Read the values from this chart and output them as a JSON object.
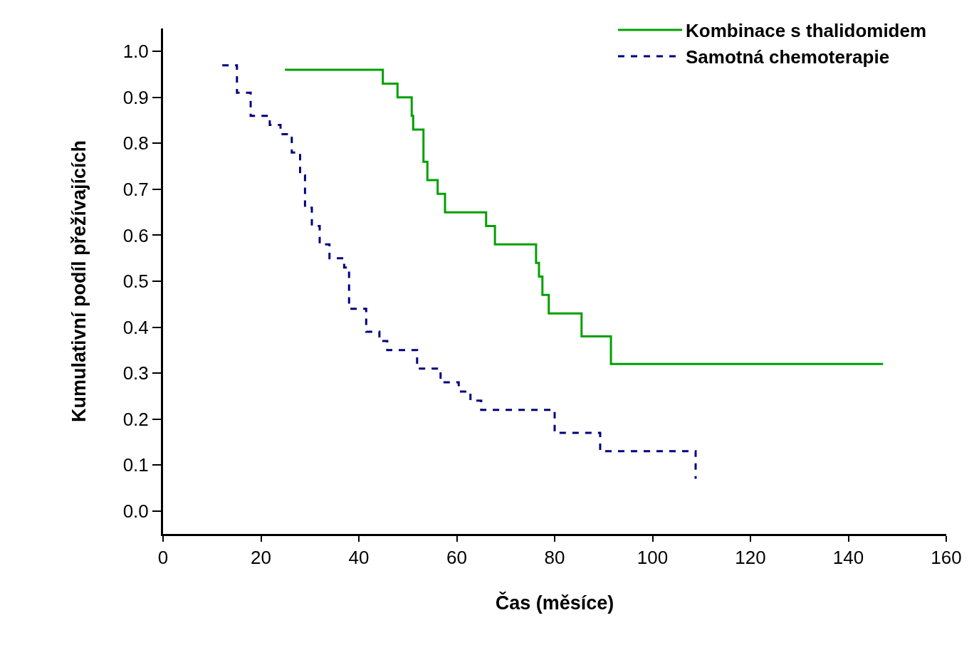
{
  "chart_data": {
    "type": "step",
    "xlabel": "Čas (měsíce)",
    "ylabel": "Kumulativní podíl přežívajících",
    "xlim": [
      0,
      160
    ],
    "xticks": [
      0,
      20,
      40,
      60,
      80,
      100,
      120,
      140,
      160
    ],
    "ylim": [
      -0.05,
      1.05
    ],
    "yticks": [
      {
        "value": 0,
        "label": "0.0"
      },
      0.1,
      0.2,
      0.3,
      0.4,
      0.5,
      0.6,
      0.7,
      0.8,
      0.9,
      {
        "value": 1,
        "label": "1.0"
      }
    ],
    "grid": false,
    "legend": "top right",
    "marker": "none",
    "series": [
      {
        "name": "Kombinace s thalidomidem",
        "color": "#00a000",
        "line_style": "solid",
        "x": [
          24.9,
          44.9,
          47.9,
          50.8,
          51.1,
          53.2,
          54.0,
          56.1,
          57.6,
          66.0,
          67.8,
          76.2,
          76.8,
          77.5,
          78.8,
          85.5,
          91.5,
          147.1
        ],
        "values": [
          0.96,
          0.93,
          0.9,
          0.86,
          0.83,
          0.76,
          0.72,
          0.69,
          0.65,
          0.62,
          0.58,
          0.54,
          0.51,
          0.47,
          0.43,
          0.38,
          0.32,
          0.32
        ]
      },
      {
        "name": "Samotná chemoterapie",
        "color": "#000080",
        "line_style": "dashed",
        "x": [
          12.1,
          15.1,
          17.9,
          21.8,
          24.0,
          26.3,
          28.0,
          29.0,
          30.4,
          32.0,
          34.0,
          37.0,
          38.0,
          41.5,
          44.2,
          45.8,
          51.9,
          56.7,
          60.4,
          62.8,
          65.0,
          80.0,
          89.3,
          108.8
        ],
        "values": [
          0.97,
          0.91,
          0.86,
          0.84,
          0.82,
          0.78,
          0.73,
          0.66,
          0.62,
          0.58,
          0.55,
          0.53,
          0.44,
          0.39,
          0.37,
          0.35,
          0.31,
          0.28,
          0.26,
          0.24,
          0.22,
          0.17,
          0.13,
          0.07
        ]
      }
    ]
  }
}
